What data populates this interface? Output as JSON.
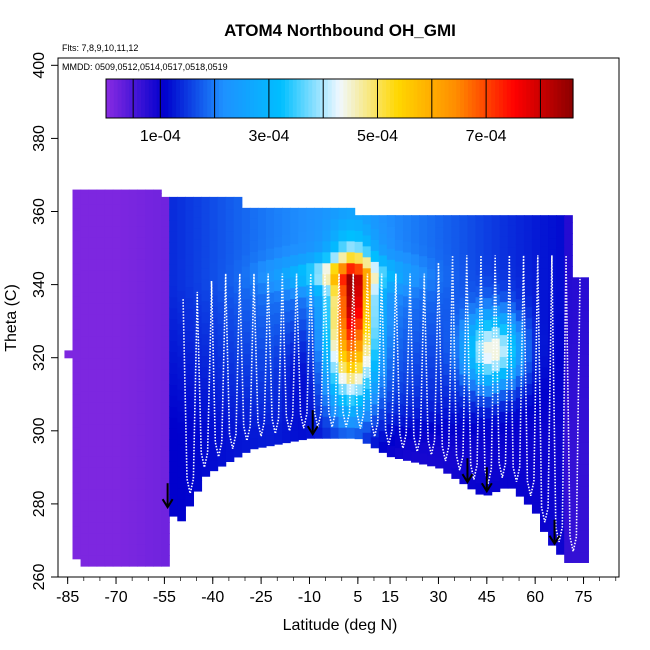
{
  "chart_data": {
    "type": "heatmap",
    "title": "ATOM4 Northbound OH_GMI",
    "subtitle": "Flts: 7,8,9,10,11,12",
    "annotation": "MMDD: 0509,0512,0514,0517,0518,0519",
    "xlabel": "Latitude (deg N)",
    "ylabel": "Theta (C)",
    "xlim": [
      -88,
      86
    ],
    "ylim": [
      260,
      402
    ],
    "x_ticks": [
      -85,
      -70,
      -55,
      -40,
      -25,
      -10,
      5,
      15,
      30,
      45,
      60,
      75
    ],
    "x_tick_labels": [
      "-85",
      "-70",
      "-55",
      "-40",
      "-25",
      "-10",
      "5",
      "15",
      "30",
      "45",
      "60",
      "75"
    ],
    "y_ticks": [
      260,
      280,
      300,
      320,
      340,
      360,
      380,
      400
    ],
    "y_tick_labels": [
      "260",
      "280",
      "300",
      "320",
      "340",
      "360",
      "380",
      "400"
    ],
    "colorbar": {
      "min": 0,
      "max": 0.00086,
      "tick_values": [
        0.0001,
        0.0003,
        0.0005,
        0.0007
      ],
      "tick_labels": [
        "1e-04",
        "3e-04",
        "5e-04",
        "7e-04"
      ],
      "colors": [
        "#8a2be2",
        "#0000cd",
        "#1e90ff",
        "#00bfff",
        "#f0f8ff",
        "#ffd700",
        "#ff8c00",
        "#ff0000",
        "#8b0000"
      ],
      "segment_boundaries": [
        5e-05,
        0.0001,
        0.0002,
        0.0003,
        0.0004,
        0.0005,
        0.0006,
        0.0007,
        0.0008
      ]
    },
    "arrow_latitudes": [
      -54,
      -9,
      39,
      45,
      66
    ],
    "data_extent": {
      "left_column_lat": [
        -84,
        -54
      ],
      "left_column_theta": [
        263,
        366
      ],
      "top_theta": 362,
      "bottom_boundary": [
        [
          -54,
          278
        ],
        [
          -50,
          275
        ],
        [
          -42,
          288
        ],
        [
          -28,
          295
        ],
        [
          -10,
          298
        ],
        [
          5,
          298
        ],
        [
          15,
          293
        ],
        [
          30,
          290
        ],
        [
          44,
          282
        ],
        [
          52,
          285
        ],
        [
          60,
          278
        ],
        [
          64,
          270
        ],
        [
          70,
          264
        ]
      ]
    }
  }
}
